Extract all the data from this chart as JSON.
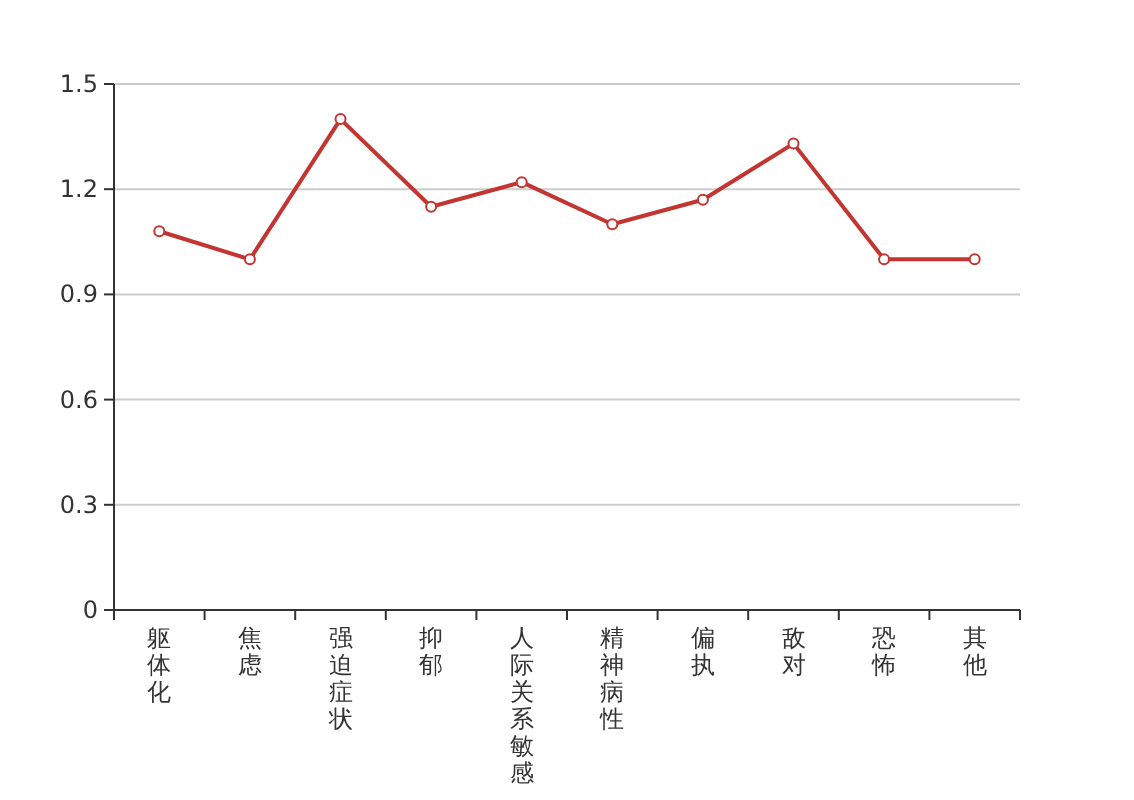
{
  "chart_data": {
    "type": "line",
    "categories": [
      "躯体化",
      "焦虑",
      "强迫症状",
      "抑郁",
      "人际关系敏感",
      "精神病性",
      "偏执",
      "敌对",
      "恐怖",
      "其他"
    ],
    "series": [
      {
        "color": "#c23531",
        "values": [
          1.08,
          1.0,
          1.4,
          1.15,
          1.22,
          1.1,
          1.17,
          1.33,
          1.0,
          1.0
        ]
      }
    ],
    "ylim": [
      0,
      1.5
    ],
    "yticks": [
      0,
      0.3,
      0.6,
      0.9,
      1.2,
      1.5
    ],
    "grid": "y",
    "marker": "circle",
    "line_style": "solid"
  }
}
